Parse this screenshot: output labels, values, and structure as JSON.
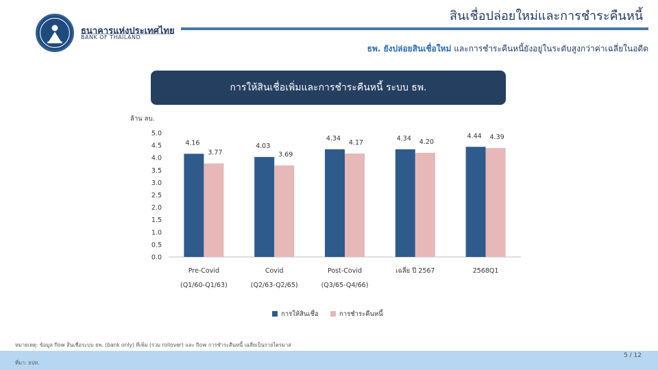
{
  "logo": {
    "name_th": "ธนาคารแห่งประเทศไทย",
    "name_en": "BANK OF THAILAND"
  },
  "header": {
    "title": "สินเชื่อปล่อยใหม่และการชำระคืนหนี้",
    "subtitle_highlight": "ธพ. ยังปล่อยสินเชื่อใหม่",
    "subtitle_rest": " และการชำระคืนหนี้ยังอยู่ในระดับสูงกว่าค่าเฉลี่ยในอดีต"
  },
  "chart_data": {
    "type": "bar",
    "title": "การให้สินเชื่อเพิ่มและการชำระคืนหนี้ ระบบ ธพ.",
    "ylabel": "ล้าน ลบ.",
    "ylim": [
      0,
      5.0
    ],
    "yticks": [
      "0.0",
      "0.5",
      "1.0",
      "1.5",
      "2.0",
      "2.5",
      "3.0",
      "3.5",
      "4.0",
      "4.5",
      "5.0"
    ],
    "categories": [
      {
        "line1": "Pre-Covid",
        "line2": "(Q1/60-Q1/63)"
      },
      {
        "line1": "Covid",
        "line2": "(Q2/63-Q2/65)"
      },
      {
        "line1": "Post-Covid",
        "line2": "(Q3/65-Q4/66)"
      },
      {
        "line1": "เฉลี่ย ปี 2567",
        "line2": ""
      },
      {
        "line1": "2568Q1",
        "line2": ""
      }
    ],
    "series": [
      {
        "name": "การให้สินเชื่อ",
        "color": "#2f5a8c",
        "values": [
          4.16,
          4.03,
          4.34,
          4.34,
          4.44
        ],
        "labels": [
          "4.16",
          "4.03",
          "4.34",
          "4.34",
          "4.44"
        ]
      },
      {
        "name": "การชำระคืนหนี้",
        "color": "#e6b8b8",
        "values": [
          3.77,
          3.69,
          4.17,
          4.2,
          4.39
        ],
        "labels": [
          "3.77",
          "3.69",
          "4.17",
          "4.20",
          "4.39"
        ]
      }
    ],
    "legend_position": "bottom"
  },
  "footer": {
    "note": "หมายเหตุ: ข้อมูล flow สินเชื่อระบบ ธพ. (bank only) ที่เพิ่ม (รวม rollover) และ flow การชำระคืนหนี้ เฉลี่ยเป็นรายไตรมาส",
    "source": "ที่มา: ธปท.",
    "page": "5 / 12"
  }
}
